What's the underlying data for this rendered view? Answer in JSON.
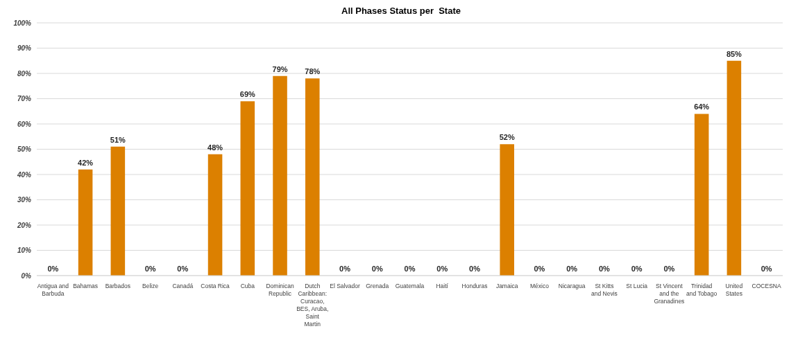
{
  "chart_data": {
    "type": "bar",
    "title": "All Phases Status per  State",
    "categories": [
      "Antigua and Barbuda",
      "Bahamas",
      "Barbados",
      "Belize",
      "Canadá",
      "Costa Rica",
      "Cuba",
      "Dominican Republic",
      "Dutch Caribbean: Curacao, BES, Aruba, Saint Martin",
      "El Salvador",
      "Grenada",
      "Guatemala",
      "Haití",
      "Honduras",
      "Jamaica",
      "México",
      "Nicaragua",
      "St Kitts and Nevis",
      "St Lucia",
      "St Vincent and the Granadines",
      "Trinidad and Tobago",
      "United States",
      "COCESNA"
    ],
    "values": [
      0,
      42,
      51,
      0,
      0,
      48,
      69,
      79,
      78,
      0,
      0,
      0,
      0,
      0,
      52,
      0,
      0,
      0,
      0,
      0,
      64,
      85,
      0
    ],
    "value_labels": [
      "0%",
      "42%",
      "51%",
      "0%",
      "0%",
      "48%",
      "69%",
      "79%",
      "78%",
      "0%",
      "0%",
      "0%",
      "0%",
      "0%",
      "52%",
      "0%",
      "0%",
      "0%",
      "0%",
      "0%",
      "64%",
      "85%",
      "0%"
    ],
    "color": "#dc8000",
    "ylim": [
      0,
      100
    ],
    "yticks": [
      {
        "value": 0,
        "label": "0%"
      },
      {
        "value": 10,
        "label": "10%"
      },
      {
        "value": 20,
        "label": "20%"
      },
      {
        "value": 30,
        "label": "30%"
      },
      {
        "value": 40,
        "label": "40%"
      },
      {
        "value": 50,
        "label": "50%"
      },
      {
        "value": 60,
        "label": "60%"
      },
      {
        "value": 70,
        "label": "70%"
      },
      {
        "value": 80,
        "label": "80%"
      },
      {
        "value": 90,
        "label": "90%"
      },
      {
        "value": 100,
        "label": "100%"
      }
    ],
    "grid": "y",
    "legend": false
  }
}
